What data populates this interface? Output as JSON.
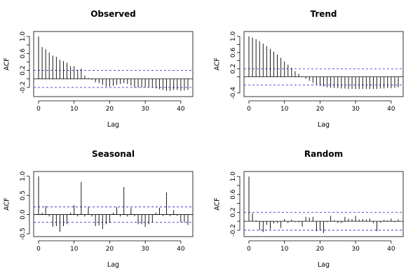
{
  "chart_data": [
    {
      "type": "bar",
      "title": "Observed",
      "xlabel": "Lag",
      "ylabel": "ACF",
      "xlim": [
        0,
        42
      ],
      "ylim": [
        -0.35,
        1.05
      ],
      "yticks": [
        -0.2,
        0.2,
        0.6,
        1.0
      ],
      "ytick_labels": [
        "-0.2",
        "0.2",
        "0.6",
        "1.0"
      ],
      "yticks_minor": [
        0.0,
        0.4,
        0.8
      ],
      "xticks": [
        0,
        10,
        20,
        30,
        40
      ],
      "xtick_labels": [
        "0",
        "10",
        "20",
        "30",
        "40"
      ],
      "ci": 0.2,
      "ci_color": "#3b3bd9",
      "x": [
        0,
        1,
        2,
        3,
        4,
        5,
        6,
        7,
        8,
        9,
        10,
        11,
        12,
        13,
        14,
        15,
        16,
        17,
        18,
        19,
        20,
        21,
        22,
        23,
        24,
        25,
        26,
        27,
        28,
        29,
        30,
        31,
        32,
        33,
        34,
        35,
        36,
        37,
        38,
        39,
        40,
        41,
        42
      ],
      "values": [
        1.0,
        0.75,
        0.7,
        0.62,
        0.55,
        0.52,
        0.45,
        0.42,
        0.38,
        0.3,
        0.3,
        0.22,
        0.24,
        0.08,
        0.02,
        -0.02,
        -0.08,
        -0.1,
        -0.14,
        -0.18,
        -0.18,
        -0.16,
        -0.14,
        -0.12,
        -0.1,
        -0.12,
        -0.16,
        -0.2,
        -0.2,
        -0.2,
        -0.2,
        -0.2,
        -0.2,
        -0.22,
        -0.24,
        -0.26,
        -0.28,
        -0.28,
        -0.26,
        -0.26,
        -0.28,
        -0.27,
        -0.26
      ]
    },
    {
      "type": "bar",
      "title": "Trend",
      "xlabel": "Lag",
      "ylabel": "ACF",
      "xlim": [
        0,
        42
      ],
      "ylim": [
        -0.42,
        1.05
      ],
      "yticks": [
        -0.4,
        0.2,
        0.6,
        1.0
      ],
      "ytick_labels": [
        "-0.4",
        "0.2",
        "0.6",
        "1.0"
      ],
      "yticks_minor": [
        0.0,
        0.4,
        0.8
      ],
      "xticks": [
        0,
        10,
        20,
        30,
        40
      ],
      "xtick_labels": [
        "0",
        "10",
        "20",
        "30",
        "40"
      ],
      "ci": 0.2,
      "ci_color": "#3b3bd9",
      "x": [
        0,
        1,
        2,
        3,
        4,
        5,
        6,
        7,
        8,
        9,
        10,
        11,
        12,
        13,
        14,
        15,
        16,
        17,
        18,
        19,
        20,
        21,
        22,
        23,
        24,
        25,
        26,
        27,
        28,
        29,
        30,
        31,
        32,
        33,
        34,
        35,
        36,
        37,
        38,
        39,
        40,
        41,
        42
      ],
      "values": [
        1.0,
        0.97,
        0.93,
        0.88,
        0.82,
        0.76,
        0.69,
        0.62,
        0.55,
        0.47,
        0.38,
        0.3,
        0.22,
        0.14,
        0.07,
        0.01,
        -0.05,
        -0.1,
        -0.15,
        -0.19,
        -0.22,
        -0.24,
        -0.26,
        -0.27,
        -0.28,
        -0.28,
        -0.29,
        -0.29,
        -0.3,
        -0.3,
        -0.3,
        -0.3,
        -0.3,
        -0.3,
        -0.3,
        -0.3,
        -0.3,
        -0.29,
        -0.29,
        -0.28,
        -0.28,
        -0.27,
        -0.26
      ]
    },
    {
      "type": "bar",
      "title": "Seasonal",
      "xlabel": "Lag",
      "ylabel": "ACF",
      "xlim": [
        0,
        42
      ],
      "ylim": [
        -0.5,
        1.05
      ],
      "yticks": [
        -0.5,
        0.0,
        0.5,
        1.0
      ],
      "ytick_labels": [
        "-0.5",
        "0.0",
        "0.5",
        "1.0"
      ],
      "yticks_minor": [],
      "xticks": [
        0,
        10,
        20,
        30,
        40
      ],
      "xtick_labels": [
        "0",
        "10",
        "20",
        "30",
        "40"
      ],
      "ci": 0.2,
      "ci_color": "#3b3bd9",
      "x": [
        0,
        1,
        2,
        3,
        4,
        5,
        6,
        7,
        8,
        9,
        10,
        11,
        12,
        13,
        14,
        15,
        16,
        17,
        18,
        19,
        20,
        21,
        22,
        23,
        24,
        25,
        26,
        27,
        28,
        29,
        30,
        31,
        32,
        33,
        34,
        35,
        36,
        37,
        38,
        39,
        40,
        41,
        42
      ],
      "values": [
        1.0,
        0.05,
        0.22,
        -0.05,
        -0.32,
        -0.3,
        -0.45,
        -0.3,
        -0.25,
        0.05,
        0.25,
        -0.05,
        0.85,
        -0.05,
        0.2,
        -0.05,
        -0.3,
        -0.28,
        -0.38,
        -0.25,
        -0.22,
        0.05,
        0.2,
        -0.05,
        0.72,
        -0.05,
        0.18,
        -0.04,
        -0.25,
        -0.25,
        -0.32,
        -0.25,
        -0.2,
        0.05,
        0.18,
        -0.04,
        0.58,
        -0.04,
        0.12,
        -0.03,
        -0.2,
        -0.2,
        -0.27
      ]
    },
    {
      "type": "bar",
      "title": "Random",
      "xlabel": "Lag",
      "ylabel": "ACF",
      "xlim": [
        0,
        42
      ],
      "ylim": [
        -0.28,
        1.05
      ],
      "yticks": [
        -0.2,
        0.2,
        0.6,
        1.0
      ],
      "ytick_labels": [
        "-0.2",
        "0.2",
        "0.6",
        "1.0"
      ],
      "yticks_minor": [
        0.0,
        0.4,
        0.8
      ],
      "xticks": [
        0,
        10,
        20,
        30,
        40
      ],
      "xtick_labels": [
        "0",
        "10",
        "20",
        "30",
        "40"
      ],
      "ci": 0.2,
      "ci_color": "#3b3bd9",
      "x": [
        0,
        1,
        2,
        3,
        4,
        5,
        6,
        7,
        8,
        9,
        10,
        11,
        12,
        13,
        14,
        15,
        16,
        17,
        18,
        19,
        20,
        21,
        22,
        23,
        24,
        25,
        26,
        27,
        28,
        29,
        30,
        31,
        32,
        33,
        34,
        35,
        36,
        37,
        38,
        39,
        40,
        41,
        42
      ],
      "values": [
        1.0,
        0.18,
        0.02,
        -0.2,
        -0.24,
        -0.08,
        -0.18,
        -0.05,
        -0.04,
        -0.15,
        0.05,
        -0.04,
        0.04,
        -0.02,
        -0.02,
        -0.12,
        0.1,
        0.08,
        0.1,
        -0.22,
        -0.2,
        -0.26,
        -0.02,
        0.12,
        0.02,
        -0.04,
        -0.04,
        0.1,
        0.06,
        0.05,
        0.12,
        0.04,
        0.05,
        0.04,
        0.06,
        -0.04,
        -0.22,
        -0.03,
        0.03,
        0.02,
        0.06,
        -0.02,
        0.04
      ]
    }
  ]
}
